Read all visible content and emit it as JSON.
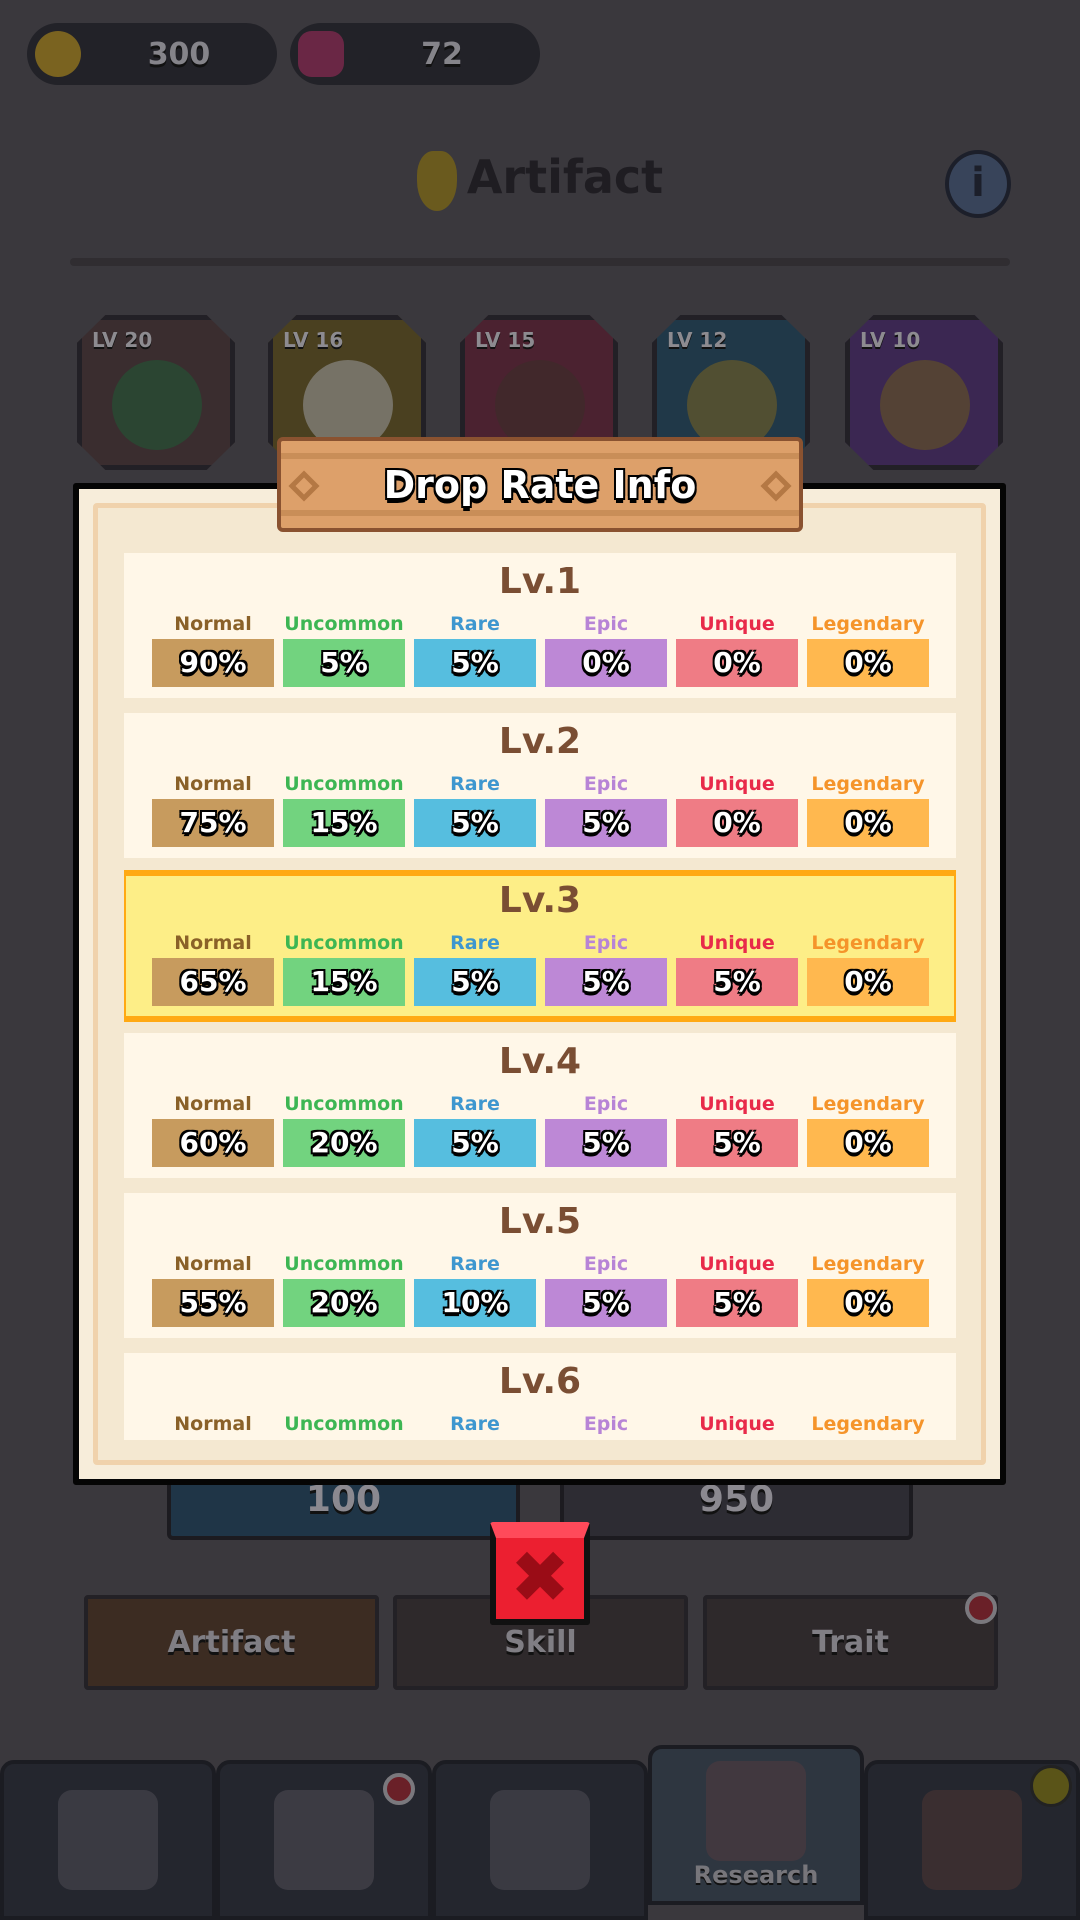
{
  "currency": {
    "gold": {
      "icon": "gold-coin-icon",
      "value": "300"
    },
    "gems": {
      "icon": "gem-icon",
      "value": "72"
    }
  },
  "header": {
    "title": "Artifact",
    "icon": "chalice-icon",
    "info_icon": "info-icon"
  },
  "artifacts": [
    {
      "level": "LV 20",
      "icon": "clover-icon",
      "color": "#3a2d2f"
    },
    {
      "level": "LV 16",
      "icon": "eagle-icon",
      "color": "#4a4020"
    },
    {
      "level": "LV 15",
      "icon": "horn-icon",
      "color": "#4b2230"
    },
    {
      "level": "LV 12",
      "icon": "gold-coin-icon",
      "color": "#203848"
    },
    {
      "level": "LV 10",
      "icon": "mirror-icon",
      "color": "#3b2752"
    }
  ],
  "summon_buttons": [
    {
      "cost": "100"
    },
    {
      "cost": "950"
    }
  ],
  "tabs": [
    {
      "label": "Artifact"
    },
    {
      "label": "Skill"
    },
    {
      "label": "Trait"
    }
  ],
  "bottom_nav": [
    {
      "icon": "castle-icon",
      "label": ""
    },
    {
      "icon": "knight-icon",
      "label": ""
    },
    {
      "icon": "crossed-swords-icon",
      "label": ""
    },
    {
      "icon": "book-icon",
      "label": "Research"
    },
    {
      "icon": "shop-icon",
      "label": ""
    }
  ],
  "modal": {
    "title": "Drop Rate Info",
    "close_icon": "close-x-icon",
    "rarities": [
      {
        "name": "Normal",
        "label_color": "#8a6128",
        "box_color": "#c79b5e"
      },
      {
        "name": "Uncommon",
        "label_color": "#3db653",
        "box_color": "#72d37f"
      },
      {
        "name": "Rare",
        "label_color": "#3e97cf",
        "box_color": "#56bedf"
      },
      {
        "name": "Epic",
        "label_color": "#b784d6",
        "box_color": "#bd88d6"
      },
      {
        "name": "Unique",
        "label_color": "#e82a4a",
        "box_color": "#ef7c85"
      },
      {
        "name": "Legendary",
        "label_color": "#f5942a",
        "box_color": "#ffb84f"
      }
    ],
    "highlight_color": "#ffa913",
    "levels": [
      {
        "label": "Lv.1",
        "rates": [
          "90%",
          "5%",
          "5%",
          "0%",
          "0%",
          "0%"
        ],
        "current": false
      },
      {
        "label": "Lv.2",
        "rates": [
          "75%",
          "15%",
          "5%",
          "5%",
          "0%",
          "0%"
        ],
        "current": false
      },
      {
        "label": "Lv.3",
        "rates": [
          "65%",
          "15%",
          "5%",
          "5%",
          "5%",
          "0%"
        ],
        "current": true
      },
      {
        "label": "Lv.4",
        "rates": [
          "60%",
          "20%",
          "5%",
          "5%",
          "5%",
          "0%"
        ],
        "current": false
      },
      {
        "label": "Lv.5",
        "rates": [
          "55%",
          "20%",
          "10%",
          "5%",
          "5%",
          "0%"
        ],
        "current": false
      },
      {
        "label": "Lv.6",
        "rates": [],
        "current": false
      }
    ]
  }
}
